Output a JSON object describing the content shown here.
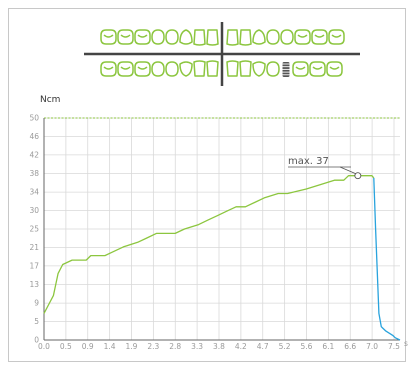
{
  "colors": {
    "curve": "#8cc63f",
    "curve_tail": "#29a3dd",
    "grid": "#d9d9d9",
    "axis": "#666666",
    "tooth": "#8cc63f",
    "implant": "#555555"
  },
  "chart_data": {
    "type": "line",
    "title": "",
    "ylabel": "Ncm",
    "xlabel": "",
    "x_unit_partial": "s",
    "xlim": [
      0,
      7.6
    ],
    "ylim": [
      0,
      50
    ],
    "grid": true,
    "legend": "none",
    "x_ticks": [
      "0.0",
      "0.5",
      "0.9",
      "1.4",
      "1.9",
      "2.3",
      "2.8",
      "3.3",
      "3.8",
      "4.2",
      "4.7",
      "5.2",
      "5.6",
      "6.1",
      "6.6",
      "7.0",
      "7.5"
    ],
    "y_ticks": [
      "0",
      "5",
      "9",
      "13",
      "17",
      "21",
      "25",
      "30",
      "34",
      "38",
      "42",
      "46",
      "50"
    ],
    "y_tick_values": [
      0,
      4.2,
      8.3,
      12.5,
      16.7,
      20.8,
      25,
      29.2,
      33.3,
      37.5,
      41.7,
      45.8,
      50
    ],
    "max_label": "max. 37",
    "max_point": {
      "x": 6.7,
      "y": 37
    },
    "reference_line_y": 50,
    "series": [
      {
        "points": [
          [
            0,
            6
          ],
          [
            0.1,
            8
          ],
          [
            0.2,
            10
          ],
          [
            0.3,
            15
          ],
          [
            0.4,
            17
          ],
          [
            0.6,
            18
          ],
          [
            0.9,
            18
          ],
          [
            1.0,
            19
          ],
          [
            1.3,
            19
          ],
          [
            1.5,
            20
          ],
          [
            1.7,
            21
          ],
          [
            2.0,
            22
          ],
          [
            2.2,
            23
          ],
          [
            2.4,
            24
          ],
          [
            2.8,
            24
          ],
          [
            3.0,
            25
          ],
          [
            3.3,
            26
          ],
          [
            3.5,
            27
          ],
          [
            3.7,
            28
          ],
          [
            3.9,
            29
          ],
          [
            4.1,
            30
          ],
          [
            4.3,
            30
          ],
          [
            4.5,
            31
          ],
          [
            4.7,
            32
          ],
          [
            5.0,
            33
          ],
          [
            5.2,
            33
          ],
          [
            5.6,
            34
          ],
          [
            5.9,
            35
          ],
          [
            6.2,
            36
          ],
          [
            6.4,
            36
          ],
          [
            6.5,
            37
          ],
          [
            7.0,
            37
          ],
          [
            7.04,
            36.5
          ]
        ]
      },
      {
        "points": [
          [
            7.04,
            36.5
          ],
          [
            7.08,
            25
          ],
          [
            7.15,
            6
          ],
          [
            7.2,
            3
          ],
          [
            7.3,
            2
          ],
          [
            7.45,
            1
          ],
          [
            7.5,
            0.5
          ],
          [
            7.6,
            0
          ]
        ]
      }
    ]
  },
  "dental_chart": {
    "upper_left": [
      "molar",
      "molar",
      "molar",
      "premolar",
      "premolar",
      "canine",
      "incisor",
      "incisor"
    ],
    "upper_right": [
      "incisor",
      "incisor",
      "canine",
      "premolar",
      "premolar",
      "molar",
      "molar",
      "molar"
    ],
    "lower_left": [
      "molar",
      "molar",
      "molar",
      "premolar",
      "premolar",
      "canine",
      "incisor",
      "incisor"
    ],
    "lower_right": [
      "incisor",
      "incisor",
      "canine",
      "premolar",
      "implant",
      "molar",
      "molar",
      "molar"
    ]
  }
}
